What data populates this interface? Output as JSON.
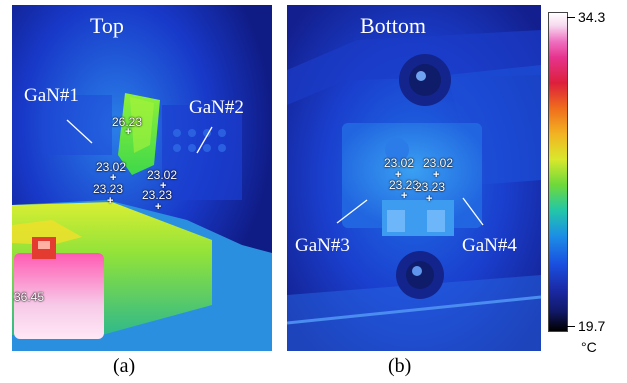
{
  "panel_a": {
    "title": "Top",
    "labels": {
      "gan1": "GaN#1",
      "gan2": "GaN#2"
    },
    "temps": {
      "t1": "26.23",
      "t2": "23.02",
      "t3": "23.23",
      "t4": "23.02",
      "t5": "23.23",
      "t6": "36.45"
    },
    "caption": "(a)"
  },
  "panel_b": {
    "title": "Bottom",
    "labels": {
      "gan3": "GaN#3",
      "gan4": "GaN#4"
    },
    "temps": {
      "t1": "23.02",
      "t2": "23.02",
      "t3": "23.23",
      "t4": "23.23"
    },
    "caption": "(b)"
  },
  "colorbar": {
    "max": "34.3",
    "min": "19.7",
    "unit": "°C"
  },
  "colors": {
    "accent_hot": "#ff3fa6",
    "background_cold": "#1a2aa6"
  }
}
